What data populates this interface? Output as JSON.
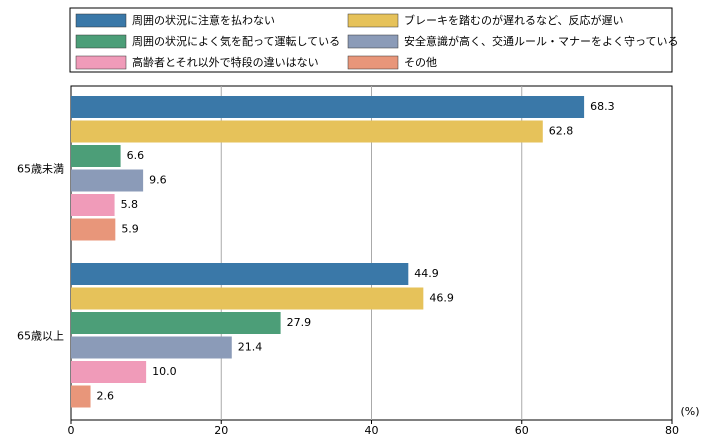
{
  "chart_data": {
    "type": "bar",
    "orientation": "horizontal",
    "categories": [
      "65歳未満",
      "65歳以上"
    ],
    "series": [
      {
        "name": "周囲の状況に注意を払わない",
        "color": "#3a78a8",
        "values": [
          68.3,
          44.9
        ]
      },
      {
        "name": "ブレーキを踏むのが遅れるなど、反応が遅い",
        "color": "#e6c25a",
        "values": [
          62.8,
          46.9
        ]
      },
      {
        "name": "周囲の状況によく気を配って運転している",
        "color": "#4c9e78",
        "values": [
          6.6,
          27.9
        ]
      },
      {
        "name": "安全意識が高く、交通ルール・マナーをよく守っている",
        "color": "#8b9bb8",
        "values": [
          9.6,
          21.4
        ]
      },
      {
        "name": "高齢者とそれ以外で特段の違いはない",
        "color": "#f09bb9",
        "values": [
          5.8,
          10.0
        ],
        "value_labels": [
          "5.8",
          "10.0"
        ]
      },
      {
        "name": "その他",
        "color": "#e8967a",
        "values": [
          5.9,
          2.6
        ]
      }
    ],
    "xlim": [
      0,
      80
    ],
    "xticks": [
      0,
      20,
      40,
      60,
      80
    ],
    "x_unit": "(%)",
    "grid": true
  }
}
